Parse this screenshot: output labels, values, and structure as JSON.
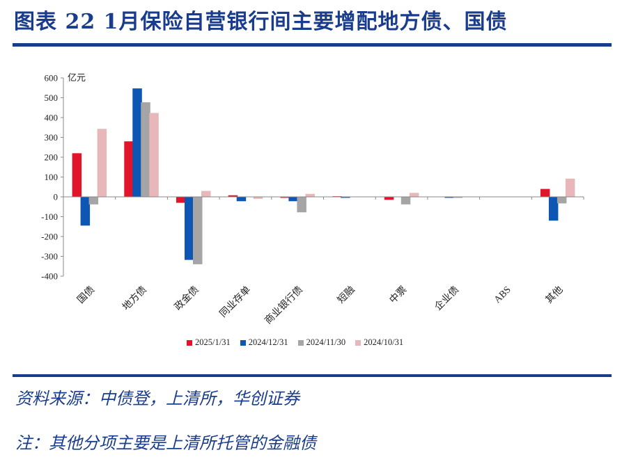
{
  "title": "图表 22   1月保险自营银行间主要增配地方债、国债",
  "source": "资料来源：中债登，上清所，华创证券",
  "note": "注：其他分项主要是上清所托管的金融债",
  "chart_data": {
    "type": "bar",
    "unit_label": "亿元",
    "categories": [
      "国债",
      "地方债",
      "政金债",
      "同业存单",
      "商业银行债",
      "短融",
      "中票",
      "企业债",
      "ABS",
      "其他"
    ],
    "series": [
      {
        "name": "2025/1/31",
        "color": "#e0142b",
        "values": [
          220,
          280,
          -30,
          8,
          -5,
          3,
          -15,
          0,
          0,
          40
        ]
      },
      {
        "name": "2024/12/31",
        "color": "#0e56b3",
        "values": [
          -145,
          547,
          -318,
          -22,
          -22,
          -5,
          0,
          -5,
          0,
          -120
        ]
      },
      {
        "name": "2024/11/30",
        "color": "#a5a5a5",
        "values": [
          -38,
          477,
          -340,
          0,
          -78,
          0,
          -38,
          -5,
          0,
          -33
        ]
      },
      {
        "name": "2024/10/31",
        "color": "#e8b7b9",
        "values": [
          343,
          423,
          30,
          -10,
          15,
          0,
          20,
          0,
          0,
          92
        ]
      }
    ],
    "ylim": [
      -400,
      600
    ],
    "yticks": [
      600,
      500,
      400,
      300,
      200,
      100,
      0,
      -100,
      -200,
      -300,
      -400
    ],
    "legend_position": "bottom"
  }
}
